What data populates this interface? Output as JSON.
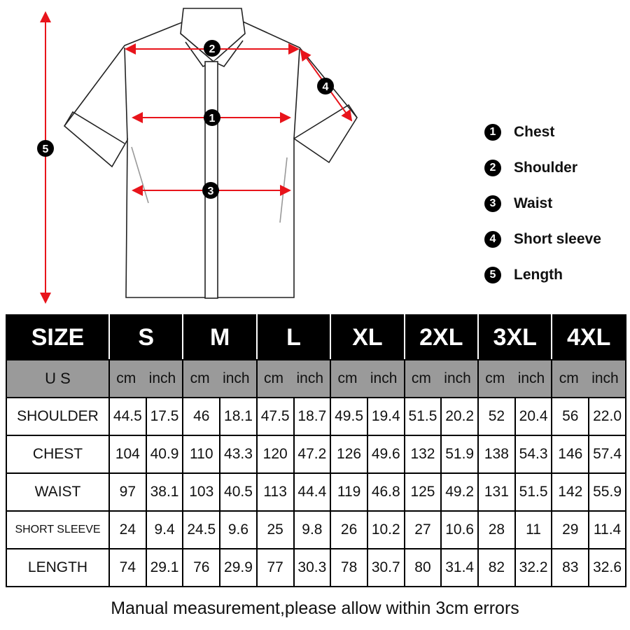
{
  "legend": [
    {
      "n": "1",
      "label": "Chest"
    },
    {
      "n": "2",
      "label": "Shoulder"
    },
    {
      "n": "3",
      "label": "Waist"
    },
    {
      "n": "4",
      "label": "Short sleeve"
    },
    {
      "n": "5",
      "label": "Length"
    }
  ],
  "colors": {
    "arrow": "#e8141b",
    "header_bg": "#000000",
    "units_bg": "#9a9a9a"
  },
  "table": {
    "size_label": "SIZE",
    "sizes": [
      "S",
      "M",
      "L",
      "XL",
      "2XL",
      "3XL",
      "4XL"
    ],
    "units_label": "U S",
    "cm": "cm",
    "inch": "inch",
    "rows": [
      {
        "label": "SHOULDER",
        "values": [
          "44.5",
          "17.5",
          "46",
          "18.1",
          "47.5",
          "18.7",
          "49.5",
          "19.4",
          "51.5",
          "20.2",
          "52",
          "20.4",
          "56",
          "22.0"
        ]
      },
      {
        "label": "CHEST",
        "values": [
          "104",
          "40.9",
          "110",
          "43.3",
          "120",
          "47.2",
          "126",
          "49.6",
          "132",
          "51.9",
          "138",
          "54.3",
          "146",
          "57.4"
        ]
      },
      {
        "label": "WAIST",
        "values": [
          "97",
          "38.1",
          "103",
          "40.5",
          "113",
          "44.4",
          "119",
          "46.8",
          "125",
          "49.2",
          "131",
          "51.5",
          "142",
          "55.9"
        ]
      },
      {
        "label": "SHORT SLEEVE",
        "values": [
          "24",
          "9.4",
          "24.5",
          "9.6",
          "25",
          "9.8",
          "26",
          "10.2",
          "27",
          "10.6",
          "28",
          "11",
          "29",
          "11.4"
        ]
      },
      {
        "label": "LENGTH",
        "values": [
          "74",
          "29.1",
          "76",
          "29.9",
          "77",
          "30.3",
          "78",
          "30.7",
          "80",
          "31.4",
          "82",
          "32.2",
          "83",
          "32.6"
        ]
      }
    ]
  },
  "footer": "Manual measurement,please allow within 3cm errors"
}
